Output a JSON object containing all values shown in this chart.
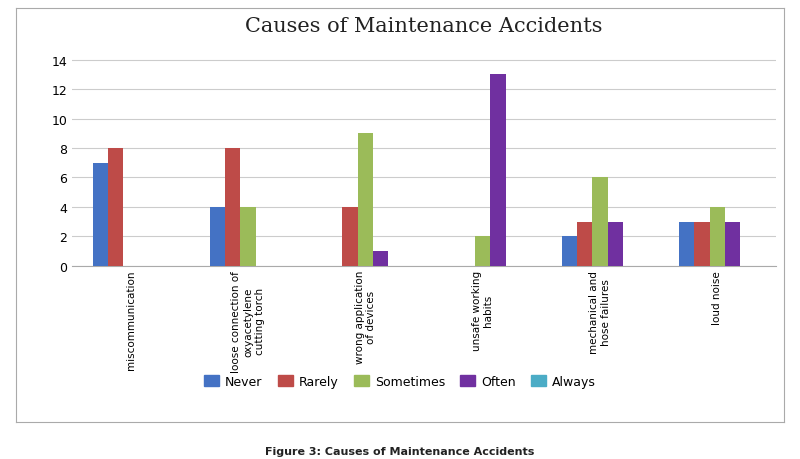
{
  "title": "Causes of Maintenance Accidents",
  "categories": [
    "miscommunication",
    "loose connection of\noxyacetylene\ncutting torch",
    "wrong application\nof devices",
    "unsafe working\nhabits",
    "mechanical and\nhose failures",
    "loud noise"
  ],
  "series": {
    "Never": [
      7,
      4,
      0,
      0,
      2,
      3
    ],
    "Rarely": [
      8,
      8,
      4,
      0,
      3,
      3
    ],
    "Sometimes": [
      0,
      4,
      9,
      2,
      6,
      4
    ],
    "Often": [
      0,
      0,
      1,
      13,
      3,
      3
    ],
    "Always": [
      0,
      0,
      0,
      0,
      0,
      0
    ]
  },
  "colors": {
    "Never": "#4472C4",
    "Rarely": "#BE4B48",
    "Sometimes": "#9BBB59",
    "Often": "#7030A0",
    "Always": "#4BACC6"
  },
  "ylim": [
    0,
    15
  ],
  "yticks": [
    0,
    2,
    4,
    6,
    8,
    10,
    12,
    14
  ],
  "figsize": [
    8.0,
    4.6
  ],
  "dpi": 100,
  "outer_bg": "#FFFFFF",
  "inner_bg": "#FFFFFF",
  "caption": "Figure 3: Causes of Maintenance Accidents",
  "legend_labels": [
    "Never",
    "Rarely",
    "Sometimes",
    "Often",
    "Always"
  ]
}
